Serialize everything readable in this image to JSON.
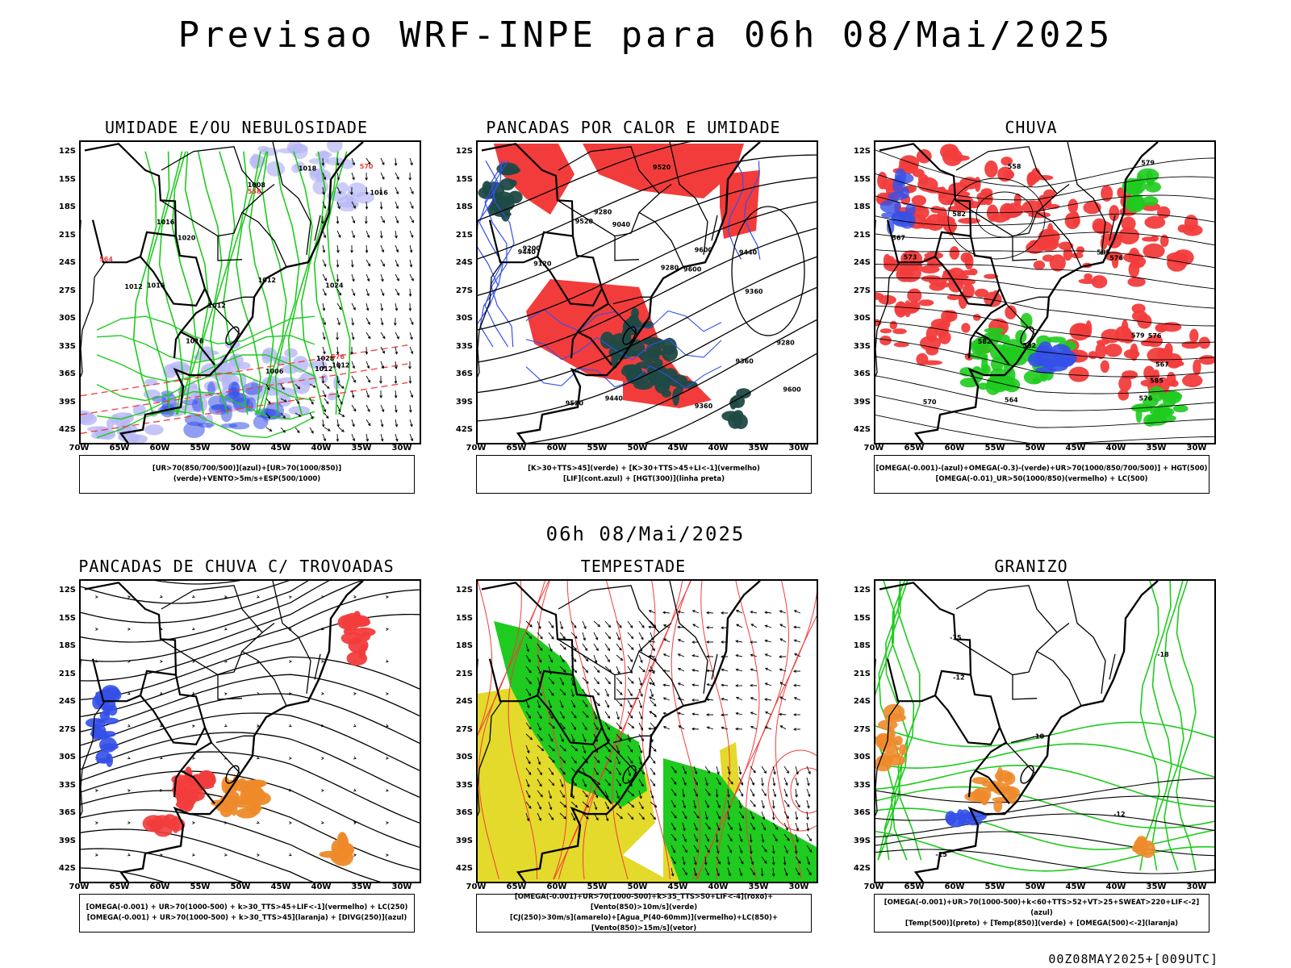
{
  "title": "Previsao WRF-INPE  para 06h 08/Mai/2025",
  "subtitle": "06h 08/Mai/2025",
  "footer": "00Z08MAY2025+[009UTC]",
  "lat_labels": [
    "12S",
    "15S",
    "18S",
    "21S",
    "24S",
    "27S",
    "30S",
    "33S",
    "36S",
    "39S",
    "42S"
  ],
  "lon_labels": [
    "70W",
    "65W",
    "60W",
    "55W",
    "50W",
    "45W",
    "40W",
    "35W",
    "30W"
  ],
  "colors": {
    "red": "#f23c3c",
    "green": "#1ecb1e",
    "blue": "#3450e8",
    "lightblue": "#b7b7f5",
    "darkteal": "#1f4a45",
    "yellow": "#e3da2b",
    "orange": "#ee8a2a"
  },
  "panels": [
    {
      "title": "UMIDADE E/OU NEBULOSIDADE",
      "legend": [
        "[UR>70(850/700/500)](azul)+[UR>70(1000/850)](verde)+VENTO>5m/s+ESP(500/1000)"
      ],
      "contour_labels": [
        "1016",
        "1016",
        "1018",
        "1012",
        "1016",
        "1020",
        "1024",
        "1012",
        "1008",
        "1006",
        "1012",
        "1012",
        "1012",
        "1028",
        "1016",
        "576",
        "564",
        "558",
        "570"
      ]
    },
    {
      "title": "PANCADAS POR CALOR E UMIDADE",
      "legend": [
        "[K>30+TTS>45](verde) + [K>30+TTS>45+LI<-1](vermelho)",
        "[LIF](cont.azul) + [HGT(300)](linha preta)"
      ],
      "contour_labels": [
        "9600",
        "9520",
        "9600",
        "9280",
        "9440",
        "9360",
        "9520",
        "9600",
        "9520",
        "9440",
        "9360",
        "9280",
        "9200",
        "9360",
        "9440",
        "9280",
        "9040",
        "9120"
      ]
    },
    {
      "title": "CHUVA",
      "legend": [
        "[OMEGA(-0.001)-(azul)+OMEGA(-0.3)-(verde)+UR>70(1000/850/700/500)] + HGT(500)",
        "[OMEGA(-0.01)_UR>50(1000/850)(vermelho) + LC(500)"
      ],
      "contour_labels": [
        "582",
        "585",
        "582",
        "576",
        "579",
        "582",
        "585",
        "576",
        "573",
        "570",
        "567",
        "558",
        "564",
        "567",
        "579",
        "576"
      ]
    },
    {
      "title": "PANCADAS DE CHUVA C/ TROVOADAS",
      "legend": [
        "[OMEGA(-0.001) + UR>70(1000-500) + k>30_TTS>45+LIF<-1](vermelho) + LC(250)",
        "[OMEGA(-0.001) + UR>70(1000-500) + k>30_TTS>45](laranja) + [DIVG(250)](azul)"
      ],
      "contour_labels": []
    },
    {
      "title": "TEMPESTADE",
      "legend": [
        "[OMEGA(-0.001)+UR>70(1000-500)+k>35_TTS>50+LIF<-4](roxo)+[Vento(850)>10m/s](verde)",
        "[CJ(250)>30m/s](amarelo)+[Agua_P(40-60mm)](vermelho)+LC(850)+[Vento(850)>15m/s](vetor)"
      ],
      "contour_labels": []
    },
    {
      "title": "GRANIZO",
      "legend": [
        "[OMEGA(-0.001)+UR>70(1000-500)+k<60+TTS>52+VT>25+SWEAT>220+LIF<-2](azul)",
        "[Temp(500)](preto) + [Temp(850)](verde) + [OMEGA(500)<-2](laranja)"
      ],
      "contour_labels": [
        "-12",
        "-18",
        "-15",
        "-18",
        "-15",
        "-12"
      ]
    }
  ]
}
